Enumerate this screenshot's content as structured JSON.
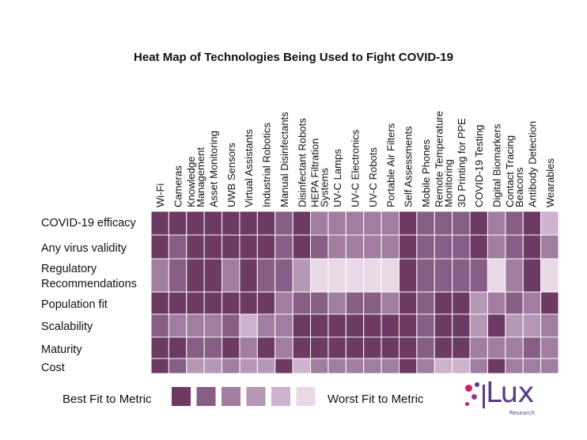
{
  "chart_data": {
    "type": "heatmap",
    "title": "Heat Map of Technologies Being Used to Fight COVID-19",
    "columns": [
      "Wi-Fi",
      "Cameras",
      "Knowledge Management",
      "Asset Monitoring",
      "UWB Sensors",
      "Virtual Assistants",
      "Industrial Robotics",
      "Manual Disinfectants",
      "Disinfectant Robots",
      "HEPA Filtration Systems",
      "UV-C Lamps",
      "UV-C Electronics",
      "UV-C Robots",
      "Portable Air Filters",
      "Self Assessments",
      "Mobile Phones",
      "Remote Temperature Monitoring",
      "3D Printing for PPE",
      "COVID-19 Testing",
      "Digital Biomarkers",
      "Contact Tracing Beacons",
      "Antibody Detection",
      "Wearables"
    ],
    "column_label_lines": [
      [
        "Wi-Fi"
      ],
      [
        "Cameras"
      ],
      [
        "Knowledge",
        "Management"
      ],
      [
        "Asset Monitoring"
      ],
      [
        "UWB Sensors"
      ],
      [
        "Virtual Assistants"
      ],
      [
        "Industrial Robotics"
      ],
      [
        "Manual Disinfectants"
      ],
      [
        "Disinfectant Robots"
      ],
      [
        "HEPA Filtration",
        "Systems"
      ],
      [
        "UV-C Lamps"
      ],
      [
        "UV-C Electronics"
      ],
      [
        "UV-C Robots"
      ],
      [
        "Portable Air Filters"
      ],
      [
        "Self Assessments"
      ],
      [
        "Mobile Phones"
      ],
      [
        "Remote Temperature",
        "Monitoring"
      ],
      [
        "3D Printing for PPE"
      ],
      [
        "COVID-19 Testing"
      ],
      [
        "Digital Biomarkers"
      ],
      [
        "Contact Tracing",
        "Beacons"
      ],
      [
        "Antibody Detection"
      ],
      [
        "Wearables"
      ]
    ],
    "rows": [
      "COVID-19 efficacy",
      "Any virus validity",
      "Regulatory Recommendations",
      "Population fit",
      "Scalability",
      "Maturity",
      "Cost"
    ],
    "row_label_lines": [
      [
        "COVID-19 efficacy"
      ],
      [
        "Any virus validity"
      ],
      [
        "Regulatory",
        "Recommendations"
      ],
      [
        "Population fit"
      ],
      [
        "Scalability"
      ],
      [
        "Maturity"
      ],
      [
        "Cost"
      ]
    ],
    "scale": "1 = Best Fit to Metric, 6 = Worst Fit to Metric",
    "values": [
      [
        1,
        1,
        1,
        1,
        1,
        1,
        1,
        2,
        1,
        3,
        3,
        3,
        3,
        3,
        1,
        2,
        2,
        2,
        1,
        3,
        2,
        1,
        5
      ],
      [
        1,
        2,
        1,
        1,
        1,
        1,
        1,
        2,
        1,
        2,
        3,
        3,
        3,
        3,
        1,
        2,
        2,
        2,
        1,
        3,
        2,
        1,
        3
      ],
      [
        3,
        2,
        1,
        1,
        3,
        1,
        2,
        2,
        4,
        6,
        6,
        6,
        6,
        6,
        1,
        2,
        2,
        2,
        2,
        6,
        3,
        1,
        6
      ],
      [
        1,
        1,
        1,
        1,
        1,
        1,
        1,
        3,
        2,
        2,
        3,
        2,
        2,
        3,
        1,
        2,
        1,
        1,
        4,
        3,
        2,
        3,
        1
      ],
      [
        2,
        3,
        3,
        3,
        2,
        5,
        3,
        3,
        1,
        1,
        1,
        1,
        1,
        1,
        1,
        2,
        1,
        1,
        4,
        1,
        4,
        4,
        3
      ],
      [
        1,
        1,
        2,
        2,
        1,
        3,
        1,
        3,
        1,
        1,
        1,
        1,
        1,
        1,
        1,
        2,
        1,
        1,
        3,
        3,
        3,
        2,
        3
      ],
      [
        1,
        2,
        4,
        4,
        3,
        4,
        4,
        1,
        5,
        3,
        3,
        3,
        3,
        3,
        1,
        3,
        5,
        5,
        3,
        1,
        3,
        3,
        3
      ]
    ],
    "legend": {
      "best_label": "Best Fit to Metric",
      "worst_label": "Worst Fit to Metric",
      "levels": [
        1,
        2,
        3,
        4,
        5,
        6
      ]
    },
    "colors": [
      "#6d3a64",
      "#875e86",
      "#a07da1",
      "#b797b6",
      "#cfb2cd",
      "#e9d9e7"
    ]
  },
  "logo": {
    "word": "Lux",
    "sub": "Research"
  }
}
